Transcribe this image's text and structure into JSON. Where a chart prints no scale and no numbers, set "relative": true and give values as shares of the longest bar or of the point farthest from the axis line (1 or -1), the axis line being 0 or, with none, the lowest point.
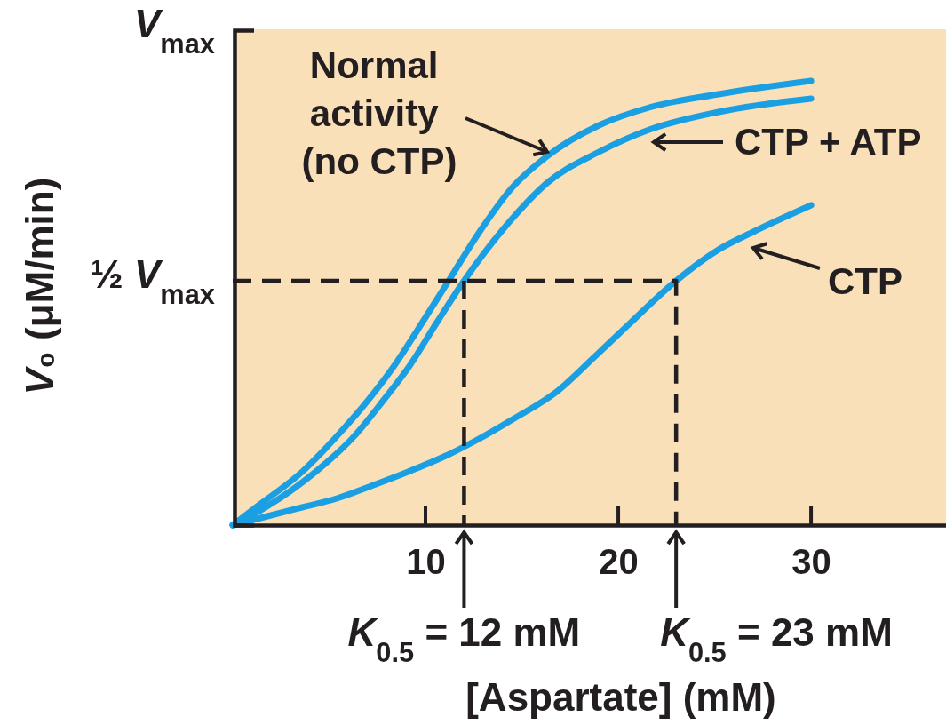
{
  "chart_data": {
    "type": "line",
    "relative": true,
    "xlabel": "[Aspartate] (mM)",
    "ylabel": "V₀ (μM/min)",
    "xlim": [
      0,
      37
    ],
    "xticks": [
      10,
      20,
      30
    ],
    "line_style": "solid",
    "series": [
      {
        "name": "Normal activity (no CTP)",
        "color": "#1a9fe3",
        "x": [
          0,
          1.2,
          3.6,
          5.4,
          7,
          8.4,
          9.6,
          11.2,
          12.8,
          14.5,
          16.3,
          19,
          21.6,
          25.2,
          30
        ],
        "values": [
          0,
          0.04,
          0.12,
          0.2,
          0.28,
          0.36,
          0.44,
          0.55,
          0.66,
          0.76,
          0.83,
          0.9,
          0.94,
          0.97,
          1
        ]
      },
      {
        "name": "CTP + ATP",
        "color": "#1a9fe3",
        "x": [
          0,
          1.7,
          4.3,
          6.3,
          7.8,
          9.2,
          10.5,
          12,
          14.5,
          16.3,
          19,
          21.6,
          25.2,
          30
        ],
        "values": [
          0,
          0.04,
          0.12,
          0.2,
          0.28,
          0.36,
          0.45,
          0.55,
          0.69,
          0.77,
          0.84,
          0.89,
          0.93,
          0.96
        ]
      },
      {
        "name": "CTP",
        "color": "#1a9fe3",
        "x": [
          0,
          1.8,
          3.6,
          5.4,
          7.3,
          9.1,
          11,
          12.6,
          14.6,
          16.8,
          18.8,
          20.5,
          23,
          25.2,
          27,
          30
        ],
        "values": [
          0,
          0.02,
          0.04,
          0.06,
          0.09,
          0.12,
          0.155,
          0.19,
          0.24,
          0.3,
          0.38,
          0.45,
          0.55,
          0.62,
          0.66,
          0.72
        ]
      },
      {
        "color": "#231f20",
        "line_style": "dashed",
        "x": [
          0,
          23,
          23
        ],
        "values": [
          0.55,
          0.55,
          0
        ]
      },
      {
        "color": "#231f20",
        "line_style": "dashed",
        "x": [
          12,
          12
        ],
        "values": [
          0.55,
          0
        ]
      }
    ],
    "annotations": [
      "V$_{max}$",
      {
        "text": "½ V$_{max}$",
        "x": 0,
        "y": 0.55
      },
      {
        "text": "K$_{0.5}$ = 12 mM",
        "x": 12,
        "y": 0
      },
      {
        "text": "K$_{0.5}$ = 23 mM",
        "x": 23,
        "y": 0
      }
    ]
  }
}
